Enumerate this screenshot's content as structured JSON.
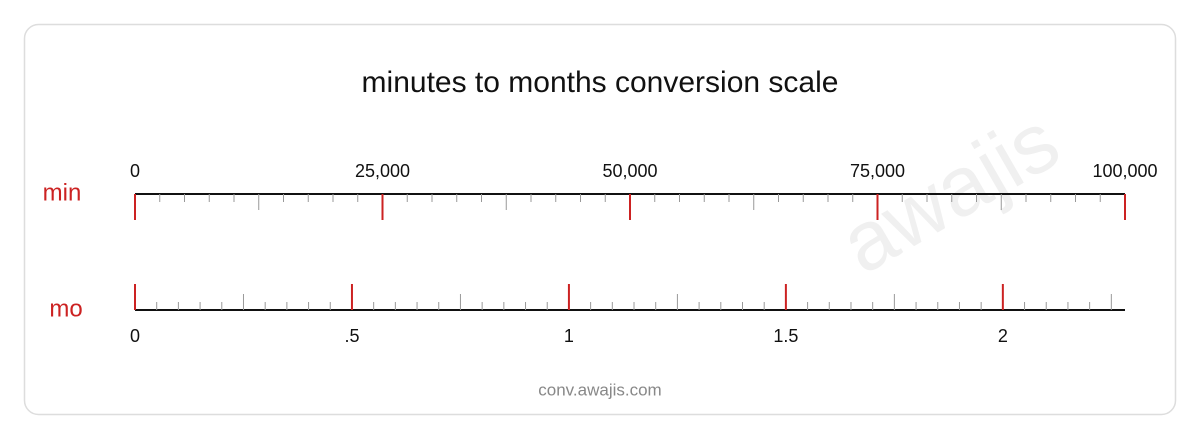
{
  "chart_data": {
    "type": "scale",
    "title": "minutes to months conversion scale",
    "watermark": "awajis",
    "footer": "conv.awajis.com",
    "major_color": "#cc2222",
    "minor_color": "#999999",
    "axes": [
      {
        "label": "min",
        "side": "top",
        "xlim": [
          0,
          100000
        ],
        "xticks": [
          0,
          {
            "value": 25000,
            "label": "25,000"
          },
          {
            "value": 50000,
            "label": "50,000"
          },
          {
            "value": 75000,
            "label": "75,000"
          },
          {
            "value": 100000,
            "label": "100,000"
          }
        ],
        "minor_step": 2500,
        "mid_step": 12500
      },
      {
        "label": "mo",
        "side": "bottom",
        "xlim": [
          0,
          2.2815
        ],
        "xticks": [
          0,
          {
            "value": 0.5,
            "label": ".5"
          },
          1,
          1.5,
          2
        ],
        "minor_step": 0.05,
        "mid_step": 0.25
      }
    ]
  }
}
